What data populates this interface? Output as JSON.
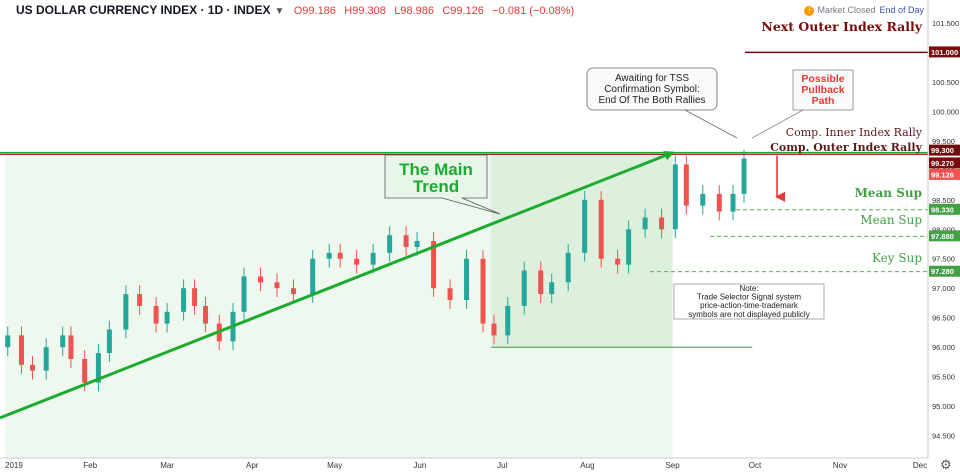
{
  "header": {
    "symbol": "US DOLLAR CURRENCY INDEX · 1D · INDEX",
    "open": "O99.186",
    "high": "H99.308",
    "low": "L98.986",
    "close": "C99.126",
    "change": "−0.081 (−0.08%)",
    "market_status": "Market Closed",
    "end_of_day": "End of Day"
  },
  "icons": {
    "chevron": "chevron-down-icon",
    "alert": "alert-icon",
    "gear": "gear-icon"
  },
  "colors": {
    "up": "#26a69a",
    "down": "#ef5350",
    "trend": "#1aab2f",
    "outer_rally": "#7a0b0b",
    "inner_rally": "#6e0f0f",
    "support": "#43a047"
  },
  "chart_data": {
    "type": "candlestick",
    "y_axis": {
      "range": [
        94.12,
        101.55
      ],
      "ticks": [
        94.5,
        95.0,
        95.5,
        96.0,
        96.5,
        97.0,
        97.5,
        98.0,
        98.5,
        99.0,
        99.5,
        100.0,
        100.5,
        101.0,
        101.5
      ],
      "tick_labels": [
        "94.500",
        "95.000",
        "95.500",
        "96.000",
        "96.500",
        "97.000",
        "97.500",
        "98.000",
        "98.500",
        "99.000",
        "99.500",
        "100.000",
        "100.500",
        "101.000",
        "101.500"
      ]
    },
    "x_axis": {
      "labels": [
        "2019",
        "Feb",
        "Mar",
        "Apr",
        "May",
        "Jun",
        "Jul",
        "Aug",
        "Sep",
        "Oct",
        "Nov",
        "Dec"
      ],
      "dates": [
        "2019-01-01",
        "2019-02-01",
        "2019-03-01",
        "2019-04-01",
        "2019-05-01",
        "2019-06-01",
        "2019-07-01",
        "2019-08-01",
        "2019-09-01",
        "2019-10-01",
        "2019-11-01",
        "2019-12-01"
      ]
    },
    "price_levels": [
      {
        "label": "Next Outer Index Rally",
        "value": 101.0,
        "tag": "101.000"
      },
      {
        "label": "Comp. Inner Index Rally",
        "value": 99.3,
        "tag": "99.300"
      },
      {
        "label": "Comp. Outer Index Rally",
        "value": 99.27,
        "tag": "99.270"
      },
      {
        "label": "",
        "value": 99.126,
        "tag": "99.126"
      },
      {
        "label": "Mean Sup",
        "value": 98.33,
        "tag": "98.330"
      },
      {
        "label": "Mean Sup",
        "value": 97.88,
        "tag": "97.880"
      },
      {
        "label": "Key Sup",
        "value": 97.28,
        "tag": "97.280"
      }
    ],
    "annotations": {
      "main_trend": "The Main Trend",
      "awaiting": [
        "Awaiting for TSS",
        "Confirmation Symbol:",
        "End Of The Both Rallies"
      ],
      "pullback": [
        "Possible",
        "Pullback",
        "Path"
      ],
      "note": [
        "Note:",
        "Trade Selector Signal system",
        "price-action-time-trademark",
        "symbols are not displayed publicly"
      ]
    },
    "candles": [
      {
        "d": "2019-01-02",
        "c": 96.2
      },
      {
        "d": "2019-01-07",
        "c": 95.7
      },
      {
        "d": "2019-01-11",
        "c": 95.6
      },
      {
        "d": "2019-01-16",
        "c": 96.0
      },
      {
        "d": "2019-01-22",
        "c": 96.2
      },
      {
        "d": "2019-01-25",
        "c": 95.8
      },
      {
        "d": "2019-01-30",
        "c": 95.4
      },
      {
        "d": "2019-02-04",
        "c": 95.9
      },
      {
        "d": "2019-02-08",
        "c": 96.3
      },
      {
        "d": "2019-02-14",
        "c": 96.9
      },
      {
        "d": "2019-02-19",
        "c": 96.7
      },
      {
        "d": "2019-02-25",
        "c": 96.4
      },
      {
        "d": "2019-03-01",
        "c": 96.6
      },
      {
        "d": "2019-03-07",
        "c": 97.0
      },
      {
        "d": "2019-03-11",
        "c": 96.7
      },
      {
        "d": "2019-03-15",
        "c": 96.4
      },
      {
        "d": "2019-03-20",
        "c": 96.1
      },
      {
        "d": "2019-03-25",
        "c": 96.6
      },
      {
        "d": "2019-03-29",
        "c": 97.2
      },
      {
        "d": "2019-04-04",
        "c": 97.1
      },
      {
        "d": "2019-04-10",
        "c": 97.0
      },
      {
        "d": "2019-04-16",
        "c": 96.9
      },
      {
        "d": "2019-04-23",
        "c": 97.5
      },
      {
        "d": "2019-04-29",
        "c": 97.6
      },
      {
        "d": "2019-05-03",
        "c": 97.5
      },
      {
        "d": "2019-05-09",
        "c": 97.4
      },
      {
        "d": "2019-05-15",
        "c": 97.6
      },
      {
        "d": "2019-05-21",
        "c": 97.9
      },
      {
        "d": "2019-05-27",
        "c": 97.7
      },
      {
        "d": "2019-05-31",
        "c": 97.8
      },
      {
        "d": "2019-06-06",
        "c": 97.0
      },
      {
        "d": "2019-06-12",
        "c": 96.8
      },
      {
        "d": "2019-06-18",
        "c": 97.5
      },
      {
        "d": "2019-06-24",
        "c": 96.4
      },
      {
        "d": "2019-06-28",
        "c": 96.2
      },
      {
        "d": "2019-07-03",
        "c": 96.7
      },
      {
        "d": "2019-07-09",
        "c": 97.3
      },
      {
        "d": "2019-07-15",
        "c": 96.9
      },
      {
        "d": "2019-07-19",
        "c": 97.1
      },
      {
        "d": "2019-07-25",
        "c": 97.6
      },
      {
        "d": "2019-07-31",
        "c": 98.5
      },
      {
        "d": "2019-08-06",
        "c": 97.5
      },
      {
        "d": "2019-08-12",
        "c": 97.4
      },
      {
        "d": "2019-08-16",
        "c": 98.0
      },
      {
        "d": "2019-08-22",
        "c": 98.2
      },
      {
        "d": "2019-08-28",
        "c": 98.0
      },
      {
        "d": "2019-09-02",
        "c": 99.1
      },
      {
        "d": "2019-09-06",
        "c": 98.4
      },
      {
        "d": "2019-09-12",
        "c": 98.6
      },
      {
        "d": "2019-09-18",
        "c": 98.3
      },
      {
        "d": "2019-09-23",
        "c": 98.6
      },
      {
        "d": "2019-09-27",
        "c": 99.2
      }
    ]
  }
}
